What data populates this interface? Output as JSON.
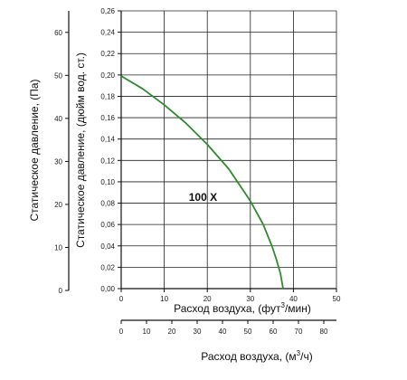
{
  "chart_data": {
    "type": "line",
    "colors": {
      "curve": "#2e8b2e",
      "grid": "#222222",
      "axis": "#111111"
    },
    "grid": true,
    "axes": {
      "y_left_outer": {
        "title": "Статическое давление, (Па)",
        "range": [
          0,
          65
        ],
        "ticks": [
          0,
          10,
          20,
          30,
          40,
          50,
          60
        ],
        "tick_labels": [
          "0",
          "10",
          "20",
          "30",
          "40",
          "50",
          "60"
        ]
      },
      "y_left_inner": {
        "title": "Статическое давление, (дюйм вод. ст.)",
        "range": [
          0,
          0.26
        ],
        "ticks": [
          0.0,
          0.02,
          0.04,
          0.06,
          0.08,
          0.1,
          0.12,
          0.14,
          0.16,
          0.18,
          0.2,
          0.22,
          0.24,
          0.26
        ],
        "tick_labels": [
          "0,00",
          "0,02",
          "0,04",
          "0,06",
          "0,08",
          "0,10",
          "0,12",
          "0,14",
          "0,16",
          "0,18",
          "0,20",
          "0,22",
          "0,24",
          "0,26"
        ]
      },
      "x_primary": {
        "title_main": "Расход воздуха, (фут",
        "title_sup": "3",
        "title_end": "/мин)",
        "range": [
          0,
          50
        ],
        "ticks": [
          0,
          10,
          20,
          30,
          40,
          50
        ],
        "tick_labels": [
          "0",
          "10",
          "20",
          "30",
          "40",
          "50"
        ]
      },
      "x_secondary": {
        "title_main": "Расход воздуха, (м",
        "title_sup": "3",
        "title_end": "/ч)",
        "range": [
          0,
          85
        ],
        "ticks": [
          0,
          10,
          20,
          30,
          40,
          50,
          60,
          70,
          80
        ],
        "tick_labels": [
          "0",
          "10",
          "20",
          "30",
          "40",
          "50",
          "60",
          "70",
          "80"
        ]
      }
    },
    "series": [
      {
        "name": "100 X",
        "x": [
          0,
          5,
          10,
          15,
          20,
          25,
          30,
          33,
          35,
          36,
          37,
          37.6
        ],
        "y": [
          0.199,
          0.187,
          0.172,
          0.155,
          0.135,
          0.112,
          0.082,
          0.06,
          0.04,
          0.028,
          0.014,
          0.0
        ]
      }
    ]
  }
}
